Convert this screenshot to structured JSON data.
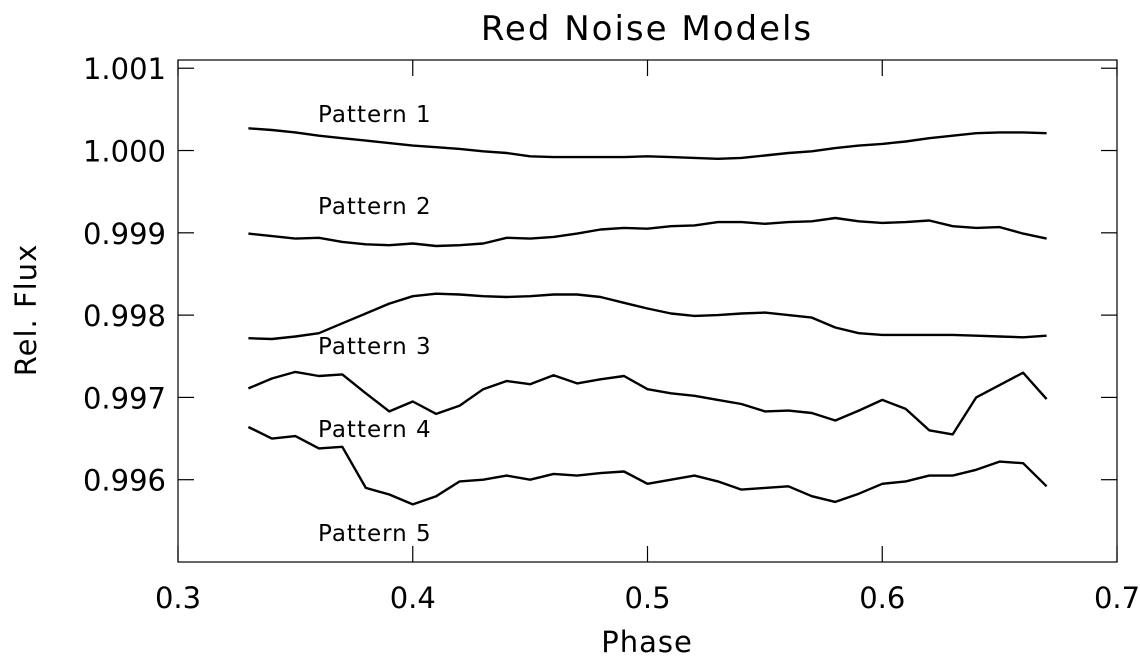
{
  "chart_data": {
    "type": "line",
    "title": "Red Noise Models",
    "xlabel": "Phase",
    "ylabel": "Rel. Flux",
    "annotations": [
      "Pattern 1",
      "Pattern 2",
      "Pattern 3",
      "Pattern 4",
      "Pattern 5"
    ],
    "x": [
      0.33,
      0.34,
      0.35,
      0.36,
      0.37,
      0.38,
      0.39,
      0.4,
      0.41,
      0.42,
      0.43,
      0.44,
      0.45,
      0.46,
      0.47,
      0.48,
      0.49,
      0.5,
      0.51,
      0.52,
      0.53,
      0.54,
      0.55,
      0.56,
      0.57,
      0.58,
      0.59,
      0.6,
      0.61,
      0.62,
      0.63,
      0.64,
      0.65,
      0.66,
      0.67
    ],
    "series": [
      {
        "color": "#000000",
        "values": [
          1.00027,
          1.00025,
          1.00022,
          1.00018,
          1.00015,
          1.00012,
          1.00009,
          1.00006,
          1.00004,
          1.00002,
          0.99999,
          0.99997,
          0.99993,
          0.99992,
          0.99992,
          0.99992,
          0.99992,
          0.99993,
          0.99992,
          0.99991,
          0.9999,
          0.99991,
          0.99994,
          0.99997,
          0.99999,
          1.00003,
          1.00006,
          1.00008,
          1.00011,
          1.00015,
          1.00018,
          1.00021,
          1.00022,
          1.00022,
          1.00021
        ]
      },
      {
        "color": "#000000",
        "values": [
          0.99899,
          0.99896,
          0.99893,
          0.99894,
          0.99889,
          0.99886,
          0.99885,
          0.99887,
          0.99884,
          0.99885,
          0.99887,
          0.99894,
          0.99893,
          0.99895,
          0.99899,
          0.99904,
          0.99906,
          0.99905,
          0.99908,
          0.99909,
          0.99913,
          0.99913,
          0.99911,
          0.99913,
          0.99914,
          0.99918,
          0.99914,
          0.99912,
          0.99913,
          0.99915,
          0.99908,
          0.99906,
          0.99907,
          0.99899,
          0.99893
        ]
      },
      {
        "color": "#000000",
        "values": [
          0.99772,
          0.99771,
          0.99774,
          0.99778,
          0.9979,
          0.99802,
          0.99814,
          0.99823,
          0.99826,
          0.99825,
          0.99823,
          0.99822,
          0.99823,
          0.99825,
          0.99825,
          0.99822,
          0.99815,
          0.99808,
          0.99802,
          0.99799,
          0.998,
          0.99802,
          0.99803,
          0.998,
          0.99797,
          0.99785,
          0.99778,
          0.99776,
          0.99776,
          0.99776,
          0.99776,
          0.99775,
          0.99774,
          0.99773,
          0.99775
        ]
      },
      {
        "color": "#000000",
        "values": [
          0.99711,
          0.99723,
          0.99731,
          0.99726,
          0.99728,
          0.99705,
          0.99683,
          0.99695,
          0.9968,
          0.9969,
          0.9971,
          0.9972,
          0.99716,
          0.99727,
          0.99717,
          0.99722,
          0.99726,
          0.9971,
          0.99705,
          0.99702,
          0.99697,
          0.99692,
          0.99683,
          0.99684,
          0.99681,
          0.99672,
          0.99684,
          0.99697,
          0.99686,
          0.9966,
          0.99655,
          0.997,
          0.99715,
          0.9973,
          0.99698
        ]
      },
      {
        "color": "#000000",
        "values": [
          0.99664,
          0.9965,
          0.99653,
          0.99638,
          0.9964,
          0.9959,
          0.99582,
          0.9957,
          0.9958,
          0.99598,
          0.996,
          0.99605,
          0.996,
          0.99607,
          0.99605,
          0.99608,
          0.9961,
          0.99595,
          0.996,
          0.99605,
          0.99598,
          0.99588,
          0.9959,
          0.99592,
          0.9958,
          0.99573,
          0.99583,
          0.99595,
          0.99598,
          0.99605,
          0.99605,
          0.99612,
          0.99622,
          0.9962,
          0.99592
        ]
      }
    ],
    "xlim": [
      0.3,
      0.7
    ],
    "xticks": [
      0.3,
      0.4,
      0.5,
      0.6,
      0.7
    ],
    "ylim": [
      0.995,
      1.0011
    ],
    "yticks": [
      0.996,
      0.997,
      0.998,
      0.999,
      {
        "value": 1.0,
        "label": "1.000"
      },
      1.001
    ]
  }
}
